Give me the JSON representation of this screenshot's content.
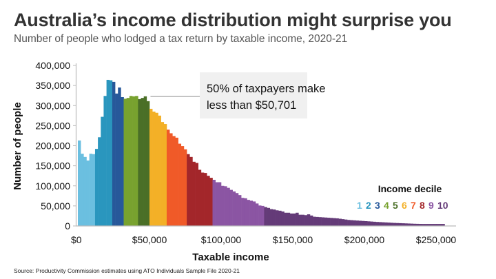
{
  "title": "Australia’s income distribution might surprise you",
  "subtitle": "Number of people who lodged a tax return by taxable income, 2020-21",
  "source": "Source: Productivity Commission estimates using ATO Individuals Sample File 2020-21",
  "chart_data": {
    "type": "bar",
    "xlabel": "Taxable income",
    "ylabel": "Number of people",
    "xlim": [
      0,
      262000
    ],
    "ylim": [
      0,
      400000
    ],
    "x_ticks": [
      "$0",
      "$50,000",
      "$100,000",
      "$150,000",
      "$200,000",
      "$250,000"
    ],
    "y_ticks": [
      "0",
      "50,000",
      "100,000",
      "150,000",
      "200,000",
      "250,000",
      "300,000",
      "350,000",
      "400,000"
    ],
    "bin_width": 2000,
    "values": [
      213000,
      180000,
      172000,
      163000,
      180000,
      179000,
      192000,
      221000,
      272000,
      324000,
      364000,
      363000,
      359000,
      330000,
      345000,
      321000,
      317000,
      319000,
      324000,
      323000,
      324000,
      316000,
      319000,
      323000,
      311000,
      292000,
      285000,
      282000,
      275000,
      259000,
      254000,
      240000,
      231000,
      224000,
      220000,
      205000,
      199000,
      191000,
      179000,
      172000,
      160000,
      157000,
      140000,
      133000,
      132000,
      125000,
      120000,
      115000,
      109000,
      109000,
      100000,
      99000,
      95000,
      90000,
      86000,
      82000,
      77000,
      70000,
      69000,
      65000,
      63000,
      61000,
      56000,
      51000,
      50000,
      47000,
      45000,
      42000,
      41000,
      39000,
      38000,
      36000,
      33000,
      33000,
      31000,
      31000,
      33000,
      28000,
      28000,
      27000,
      29000,
      26000,
      23000,
      22500,
      22000,
      21500,
      21000,
      20500,
      20000,
      19500,
      19000,
      18000,
      17000,
      16000,
      15000,
      14500,
      14000,
      13500,
      13000,
      12500,
      12000,
      11500,
      11000,
      10500,
      10000,
      9600,
      9200,
      8800,
      8400,
      8000,
      7600,
      7300,
      7000,
      6700,
      6400,
      6100,
      5800,
      5500,
      5300,
      5100,
      5000,
      5000,
      5000,
      5000,
      5000,
      5000,
      5000,
      5000
    ],
    "decile_upper_bounds": [
      11000,
      23000,
      31000,
      41000,
      50701,
      62000,
      75000,
      93000,
      130000
    ],
    "decile_colors": [
      "#6bbfe0",
      "#2a96be",
      "#27589a",
      "#78a22f",
      "#4a6f27",
      "#f3b027",
      "#f05a28",
      "#a3262a",
      "#8b55a3",
      "#643b78"
    ],
    "legend": {
      "title": "Income decile",
      "labels": [
        "1",
        "2",
        "3",
        "4",
        "5",
        "6",
        "7",
        "8",
        "9",
        "10"
      ],
      "placement": "right"
    },
    "annotation": {
      "line1": "50% of taxpayers make",
      "line2": "less than $50,701",
      "x": 50701
    },
    "grid": false
  }
}
